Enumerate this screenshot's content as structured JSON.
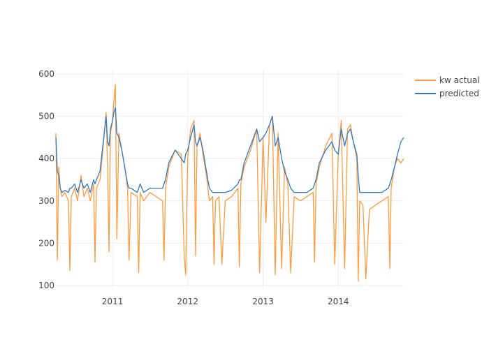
{
  "chart_data": {
    "type": "line",
    "title": "",
    "xlabel": "",
    "ylabel": "",
    "grid": true,
    "legend_position": "top-right",
    "x_axis": {
      "type": "date",
      "range": [
        "2010-04-01",
        "2014-11-15"
      ],
      "ticks": [
        "2011-01-01",
        "2012-01-01",
        "2013-01-01",
        "2014-01-01"
      ],
      "tick_labels": [
        "2011",
        "2012",
        "2013",
        "2014"
      ]
    },
    "y_axis": {
      "range": [
        90,
        610
      ],
      "ticks": [
        100,
        200,
        300,
        400,
        500,
        600
      ],
      "tick_labels": [
        "100",
        "200",
        "300",
        "400",
        "500",
        "600"
      ]
    },
    "series": [
      {
        "name": "kw actual",
        "color": "#ff9a3c",
        "points": [
          [
            "2010-04-01",
            460
          ],
          [
            "2010-04-08",
            160
          ],
          [
            "2010-04-15",
            380
          ],
          [
            "2010-04-22",
            330
          ],
          [
            "2010-05-01",
            310
          ],
          [
            "2010-05-15",
            320
          ],
          [
            "2010-06-01",
            300
          ],
          [
            "2010-06-08",
            135
          ],
          [
            "2010-06-15",
            310
          ],
          [
            "2010-07-01",
            330
          ],
          [
            "2010-07-15",
            300
          ],
          [
            "2010-08-01",
            360
          ],
          [
            "2010-08-15",
            310
          ],
          [
            "2010-09-01",
            330
          ],
          [
            "2010-09-15",
            300
          ],
          [
            "2010-10-01",
            340
          ],
          [
            "2010-10-08",
            155
          ],
          [
            "2010-10-15",
            330
          ],
          [
            "2010-11-01",
            350
          ],
          [
            "2010-11-15",
            420
          ],
          [
            "2010-12-01",
            510
          ],
          [
            "2010-12-08",
            380
          ],
          [
            "2010-12-15",
            180
          ],
          [
            "2010-12-22",
            460
          ],
          [
            "2011-01-01",
            490
          ],
          [
            "2011-01-08",
            540
          ],
          [
            "2011-01-15",
            575
          ],
          [
            "2011-01-22",
            210
          ],
          [
            "2011-02-01",
            460
          ],
          [
            "2011-02-15",
            420
          ],
          [
            "2011-03-01",
            380
          ],
          [
            "2011-03-15",
            330
          ],
          [
            "2011-03-22",
            160
          ],
          [
            "2011-04-01",
            320
          ],
          [
            "2011-05-01",
            310
          ],
          [
            "2011-05-08",
            130
          ],
          [
            "2011-05-15",
            320
          ],
          [
            "2011-06-01",
            300
          ],
          [
            "2011-07-01",
            320
          ],
          [
            "2011-08-01",
            310
          ],
          [
            "2011-09-01",
            300
          ],
          [
            "2011-09-08",
            160
          ],
          [
            "2011-09-15",
            330
          ],
          [
            "2011-10-01",
            380
          ],
          [
            "2011-11-01",
            420
          ],
          [
            "2011-12-01",
            410
          ],
          [
            "2011-12-15",
            170
          ],
          [
            "2011-12-22",
            125
          ],
          [
            "2012-01-01",
            400
          ],
          [
            "2012-01-15",
            470
          ],
          [
            "2012-02-01",
            490
          ],
          [
            "2012-02-08",
            170
          ],
          [
            "2012-02-15",
            430
          ],
          [
            "2012-03-01",
            460
          ],
          [
            "2012-03-15",
            410
          ],
          [
            "2012-04-01",
            360
          ],
          [
            "2012-04-15",
            300
          ],
          [
            "2012-05-01",
            310
          ],
          [
            "2012-05-08",
            150
          ],
          [
            "2012-05-15",
            300
          ],
          [
            "2012-06-01",
            310
          ],
          [
            "2012-06-15",
            150
          ],
          [
            "2012-07-01",
            300
          ],
          [
            "2012-08-01",
            310
          ],
          [
            "2012-09-01",
            330
          ],
          [
            "2012-09-08",
            145
          ],
          [
            "2012-09-15",
            340
          ],
          [
            "2012-10-01",
            380
          ],
          [
            "2012-11-01",
            420
          ],
          [
            "2012-12-01",
            470
          ],
          [
            "2012-12-15",
            130
          ],
          [
            "2013-01-01",
            450
          ],
          [
            "2013-01-15",
            250
          ],
          [
            "2013-02-01",
            480
          ],
          [
            "2013-02-15",
            500
          ],
          [
            "2013-03-01",
            125
          ],
          [
            "2013-03-15",
            460
          ],
          [
            "2013-04-01",
            140
          ],
          [
            "2013-04-15",
            380
          ],
          [
            "2013-05-01",
            340
          ],
          [
            "2013-05-15",
            130
          ],
          [
            "2013-06-01",
            310
          ],
          [
            "2013-07-01",
            300
          ],
          [
            "2013-08-01",
            310
          ],
          [
            "2013-09-01",
            320
          ],
          [
            "2013-09-08",
            155
          ],
          [
            "2013-09-15",
            340
          ],
          [
            "2013-10-01",
            380
          ],
          [
            "2013-11-01",
            430
          ],
          [
            "2013-12-01",
            460
          ],
          [
            "2013-12-15",
            150
          ],
          [
            "2014-01-01",
            410
          ],
          [
            "2014-01-15",
            490
          ],
          [
            "2014-02-01",
            140
          ],
          [
            "2014-02-15",
            470
          ],
          [
            "2014-03-01",
            480
          ],
          [
            "2014-03-15",
            440
          ],
          [
            "2014-04-01",
            400
          ],
          [
            "2014-04-08",
            110
          ],
          [
            "2014-04-15",
            300
          ],
          [
            "2014-05-01",
            290
          ],
          [
            "2014-05-15",
            115
          ],
          [
            "2014-06-01",
            280
          ],
          [
            "2014-07-01",
            290
          ],
          [
            "2014-08-01",
            300
          ],
          [
            "2014-09-01",
            310
          ],
          [
            "2014-09-08",
            140
          ],
          [
            "2014-09-15",
            330
          ],
          [
            "2014-10-01",
            380
          ],
          [
            "2014-10-15",
            400
          ],
          [
            "2014-11-01",
            390
          ],
          [
            "2014-11-15",
            400
          ]
        ]
      },
      {
        "name": "predicted",
        "color": "#2f78c4",
        "points": [
          [
            "2010-04-01",
            450
          ],
          [
            "2010-04-08",
            370
          ],
          [
            "2010-04-15",
            360
          ],
          [
            "2010-04-22",
            330
          ],
          [
            "2010-05-01",
            320
          ],
          [
            "2010-05-15",
            325
          ],
          [
            "2010-06-01",
            320
          ],
          [
            "2010-06-08",
            330
          ],
          [
            "2010-06-15",
            330
          ],
          [
            "2010-07-01",
            340
          ],
          [
            "2010-07-15",
            320
          ],
          [
            "2010-08-01",
            350
          ],
          [
            "2010-08-15",
            330
          ],
          [
            "2010-09-01",
            340
          ],
          [
            "2010-09-15",
            320
          ],
          [
            "2010-10-01",
            350
          ],
          [
            "2010-10-08",
            340
          ],
          [
            "2010-10-15",
            350
          ],
          [
            "2010-11-01",
            370
          ],
          [
            "2010-11-15",
            430
          ],
          [
            "2010-12-01",
            500
          ],
          [
            "2010-12-08",
            440
          ],
          [
            "2010-12-15",
            430
          ],
          [
            "2010-12-22",
            470
          ],
          [
            "2011-01-01",
            490
          ],
          [
            "2011-01-08",
            510
          ],
          [
            "2011-01-15",
            520
          ],
          [
            "2011-01-22",
            460
          ],
          [
            "2011-02-01",
            450
          ],
          [
            "2011-02-15",
            420
          ],
          [
            "2011-03-01",
            380
          ],
          [
            "2011-03-15",
            340
          ],
          [
            "2011-03-22",
            330
          ],
          [
            "2011-04-01",
            330
          ],
          [
            "2011-05-01",
            320
          ],
          [
            "2011-05-08",
            330
          ],
          [
            "2011-05-15",
            340
          ],
          [
            "2011-06-01",
            320
          ],
          [
            "2011-07-01",
            330
          ],
          [
            "2011-08-01",
            330
          ],
          [
            "2011-09-01",
            330
          ],
          [
            "2011-09-08",
            340
          ],
          [
            "2011-09-15",
            350
          ],
          [
            "2011-10-01",
            390
          ],
          [
            "2011-11-01",
            420
          ],
          [
            "2011-12-01",
            400
          ],
          [
            "2011-12-15",
            390
          ],
          [
            "2011-12-22",
            410
          ],
          [
            "2012-01-01",
            420
          ],
          [
            "2012-01-15",
            450
          ],
          [
            "2012-02-01",
            480
          ],
          [
            "2012-02-08",
            440
          ],
          [
            "2012-02-15",
            430
          ],
          [
            "2012-03-01",
            450
          ],
          [
            "2012-03-15",
            420
          ],
          [
            "2012-04-01",
            370
          ],
          [
            "2012-04-15",
            330
          ],
          [
            "2012-05-01",
            320
          ],
          [
            "2012-05-08",
            320
          ],
          [
            "2012-05-15",
            320
          ],
          [
            "2012-06-01",
            320
          ],
          [
            "2012-06-15",
            320
          ],
          [
            "2012-07-01",
            320
          ],
          [
            "2012-08-01",
            325
          ],
          [
            "2012-09-01",
            340
          ],
          [
            "2012-09-08",
            350
          ],
          [
            "2012-09-15",
            350
          ],
          [
            "2012-10-01",
            390
          ],
          [
            "2012-11-01",
            430
          ],
          [
            "2012-12-01",
            470
          ],
          [
            "2012-12-15",
            440
          ],
          [
            "2013-01-01",
            450
          ],
          [
            "2013-01-15",
            460
          ],
          [
            "2013-02-01",
            480
          ],
          [
            "2013-02-15",
            500
          ],
          [
            "2013-03-01",
            430
          ],
          [
            "2013-03-15",
            450
          ],
          [
            "2013-04-01",
            400
          ],
          [
            "2013-04-15",
            370
          ],
          [
            "2013-05-01",
            350
          ],
          [
            "2013-05-15",
            330
          ],
          [
            "2013-06-01",
            320
          ],
          [
            "2013-07-01",
            320
          ],
          [
            "2013-08-01",
            320
          ],
          [
            "2013-09-01",
            330
          ],
          [
            "2013-09-08",
            340
          ],
          [
            "2013-09-15",
            350
          ],
          [
            "2013-10-01",
            390
          ],
          [
            "2013-11-01",
            420
          ],
          [
            "2013-12-01",
            440
          ],
          [
            "2013-12-15",
            420
          ],
          [
            "2014-01-01",
            410
          ],
          [
            "2014-01-15",
            470
          ],
          [
            "2014-02-01",
            430
          ],
          [
            "2014-02-15",
            460
          ],
          [
            "2014-03-01",
            470
          ],
          [
            "2014-03-15",
            440
          ],
          [
            "2014-04-01",
            410
          ],
          [
            "2014-04-08",
            360
          ],
          [
            "2014-04-15",
            320
          ],
          [
            "2014-05-01",
            320
          ],
          [
            "2014-05-15",
            320
          ],
          [
            "2014-06-01",
            320
          ],
          [
            "2014-07-01",
            320
          ],
          [
            "2014-08-01",
            320
          ],
          [
            "2014-09-01",
            330
          ],
          [
            "2014-09-08",
            340
          ],
          [
            "2014-09-15",
            350
          ],
          [
            "2014-10-01",
            380
          ],
          [
            "2014-10-15",
            410
          ],
          [
            "2014-11-01",
            440
          ],
          [
            "2014-11-15",
            450
          ]
        ]
      }
    ]
  },
  "legend": {
    "items": [
      {
        "label": "kw actual",
        "color": "#ff9a3c"
      },
      {
        "label": "predicted",
        "color": "#2f78c4"
      }
    ]
  }
}
